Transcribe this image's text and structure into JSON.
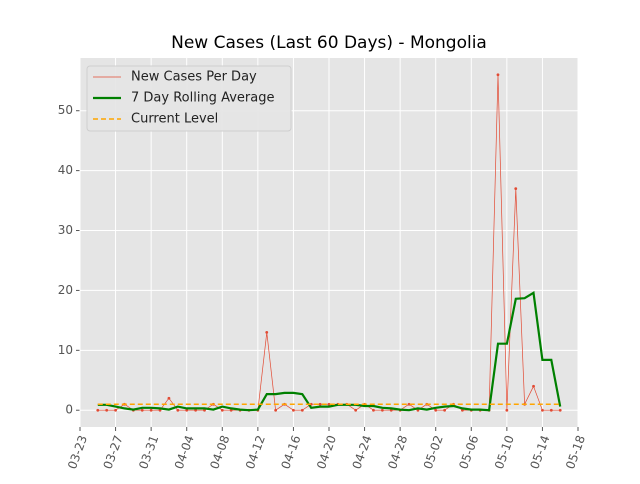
{
  "chart_data": {
    "type": "line",
    "title": "New Cases (Last 60 Days) - Mongolia",
    "x": [
      "03-25",
      "03-26",
      "03-27",
      "03-28",
      "03-29",
      "03-30",
      "03-31",
      "04-01",
      "04-02",
      "04-03",
      "04-04",
      "04-05",
      "04-06",
      "04-07",
      "04-08",
      "04-09",
      "04-10",
      "04-11",
      "04-12",
      "04-13",
      "04-14",
      "04-15",
      "04-16",
      "04-17",
      "04-18",
      "04-19",
      "04-20",
      "04-21",
      "04-22",
      "04-23",
      "04-24",
      "04-25",
      "04-26",
      "04-27",
      "04-28",
      "04-29",
      "04-30",
      "05-01",
      "05-02",
      "05-03",
      "05-04",
      "05-05",
      "05-06",
      "05-07",
      "05-08",
      "05-09",
      "05-10",
      "05-11",
      "05-12",
      "05-13",
      "05-14",
      "05-15",
      "05-16"
    ],
    "series": [
      {
        "name": "New Cases Per Day",
        "color": "#e24a33",
        "values": [
          0,
          0,
          0,
          1,
          0,
          0,
          0,
          0,
          2,
          0,
          0,
          0,
          0,
          1,
          0,
          0,
          0,
          0,
          0,
          13,
          0,
          1,
          0,
          0,
          1,
          1,
          1,
          1,
          1,
          0,
          1,
          0,
          0,
          0,
          0,
          1,
          0,
          1,
          0,
          0,
          1,
          0,
          0,
          0,
          0,
          56,
          0,
          37,
          1,
          4,
          0,
          0,
          0
        ]
      },
      {
        "name": "7 Day Rolling Average",
        "color": "#008000",
        "values": [
          0.9,
          0.9,
          0.6,
          0.3,
          0.1,
          0.4,
          0.4,
          0.3,
          0.1,
          0.6,
          0.3,
          0.3,
          0.3,
          0.1,
          0.6,
          0.3,
          0.1,
          0.0,
          0.1,
          2.7,
          2.7,
          2.9,
          2.9,
          2.7,
          0.4,
          0.6,
          0.6,
          0.9,
          0.9,
          0.9,
          0.7,
          0.7,
          0.4,
          0.3,
          0.1,
          0.0,
          0.3,
          0.1,
          0.4,
          0.6,
          0.7,
          0.3,
          0.1,
          0.1,
          0.0,
          11.1,
          11.1,
          18.6,
          18.7,
          19.6,
          8.4,
          8.4,
          0.6
        ]
      },
      {
        "name": "Current Level",
        "color": "#ffa500",
        "level": 1.0
      }
    ],
    "xlim": [
      "03-23",
      "05-18"
    ],
    "xticks": [
      "03-23",
      "03-27",
      "03-31",
      "04-04",
      "04-08",
      "04-12",
      "04-16",
      "04-20",
      "04-24",
      "04-28",
      "05-02",
      "05-06",
      "05-10",
      "05-14",
      "05-18"
    ],
    "ylim": [
      -2.8,
      58.8
    ],
    "yticks": [
      0,
      10,
      20,
      30,
      40,
      50
    ],
    "grid": true,
    "legend": "upper left"
  }
}
